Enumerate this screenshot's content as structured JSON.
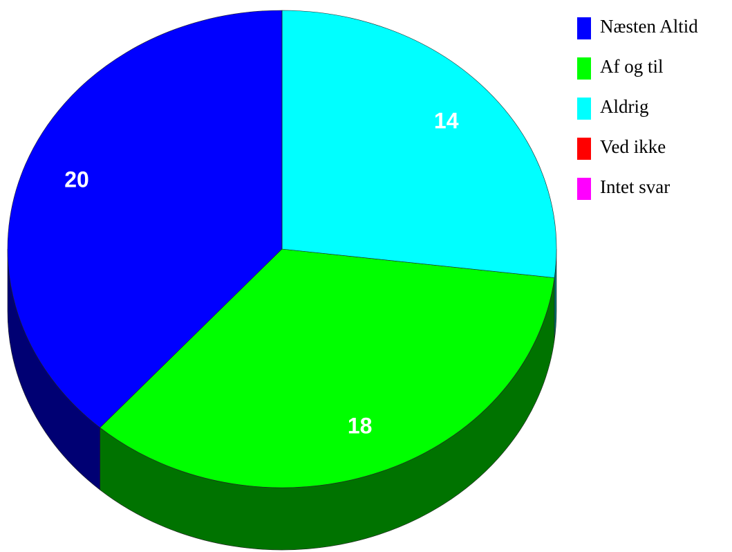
{
  "chart_data": {
    "type": "pie3d",
    "series": [
      {
        "name": "Næsten Altid",
        "color": "#0000ff",
        "value": 20
      },
      {
        "name": "Af og til",
        "color": "#00ff00",
        "value": 18
      },
      {
        "name": "Aldrig",
        "color": "#00ffff",
        "value": 14
      },
      {
        "name": "Ved ikke",
        "color": "#ff0000",
        "value": 0
      },
      {
        "name": "Intet svar",
        "color": "#ff00ff",
        "value": 0
      }
    ]
  }
}
